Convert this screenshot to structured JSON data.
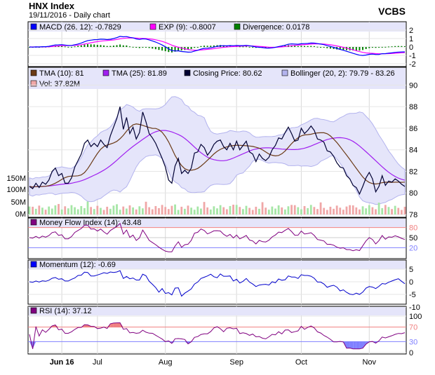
{
  "header": {
    "title": "HNX Index",
    "subtitle": "19/11/2016 - Daily chart",
    "brand": "VCBS"
  },
  "x_axis": {
    "labels": [
      {
        "label": "Jun 16",
        "index": 10,
        "bold": true
      },
      {
        "label": "Jul",
        "index": 21
      },
      {
        "label": "Aug",
        "index": 42
      },
      {
        "label": "Sep",
        "index": 64
      },
      {
        "label": "Oct",
        "index": 84
      },
      {
        "label": "Nov",
        "index": 105
      }
    ]
  },
  "colors": {
    "accent_bg": "#e5e5fa",
    "macd": "#0000ff",
    "signal": "#ff00ff",
    "divergence": "#008000",
    "tma10": "#6b3a16",
    "tma25": "#a020f0",
    "close": "#000033",
    "bollinger": "#b3b3ee",
    "vol_up": "#a6e6a6",
    "vol_down": "#f0a7a7",
    "mfi": "#800080",
    "momentum": "#0000cc",
    "rsi": "#800080",
    "overbought": "#f08080",
    "oversold": "#8080ff"
  },
  "panels": {
    "macd": {
      "legend": [
        {
          "text": "MACD (26, 12): -0.7829",
          "color": "#0000ff"
        },
        {
          "text": "EXP (9): -0.8007",
          "color": "#ff00ff"
        },
        {
          "text": "Divergence: 0.0178",
          "color": "#008000"
        }
      ],
      "ticks": [
        "2",
        "1",
        "0",
        "-1",
        "-2"
      ]
    },
    "price": {
      "legend": [
        {
          "text": "TMA (10): 81",
          "color": "#6b3a16"
        },
        {
          "text": "TMA (25): 81.89",
          "color": "#a020f0"
        },
        {
          "text": "Closing Price: 80.62",
          "color": "#000033"
        },
        {
          "text": "Bollinger (20, 2): 79.79 - 83.26",
          "color": "#b3b3ee"
        }
      ],
      "legend2": {
        "text": "Vol: 37.82M",
        "color": "#f0a7a7"
      },
      "ticks": [
        "90",
        "88",
        "86",
        "84",
        "82",
        "80",
        "78"
      ],
      "vol_ticks": [
        "150M",
        "100M",
        "50M",
        "0M"
      ]
    },
    "mfi": {
      "legend": {
        "text": "Money Flow Index (14): 43.48",
        "color": "#800080"
      },
      "ticks": [
        "80",
        "50",
        "20"
      ]
    },
    "momentum": {
      "legend": {
        "text": "Momentum (12): -0.69",
        "color": "#0000ff"
      },
      "ticks": [
        "5",
        "0",
        "-5",
        "-10"
      ]
    },
    "rsi": {
      "legend": {
        "text": "RSI (14): 37.12",
        "color": "#800080"
      },
      "ticks": [
        "100",
        "70",
        "30",
        "0"
      ]
    }
  },
  "chart_data": {
    "type": "line",
    "title": "HNX Index",
    "x_unit": "trading day index (0 = mid-May 2016, 116 = 18/11/2016)",
    "price": {
      "ylim": [
        78,
        91
      ],
      "close": [
        80.6,
        80.4,
        80.9,
        80.5,
        81.0,
        80.8,
        81.2,
        82.0,
        82.3,
        81.6,
        81.8,
        80.9,
        80.9,
        81.4,
        82.4,
        83.0,
        83.6,
        84.6,
        84.9,
        84.3,
        84.6,
        84.3,
        84.9,
        84.5,
        84.2,
        85.3,
        86.1,
        86.9,
        88.0,
        85.9,
        87.0,
        85.5,
        86.1,
        85.0,
        85.6,
        87.5,
        86.6,
        85.5,
        85.1,
        84.6,
        83.9,
        83.2,
        82.4,
        81.2,
        80.9,
        82.5,
        83.2,
        81.8,
        82.1,
        81.8,
        82.3,
        83.7,
        83.8,
        84.5,
        84.2,
        83.5,
        83.9,
        84.5,
        84.8,
        84.9,
        84.3,
        84.0,
        84.6,
        84.0,
        84.8,
        84.0,
        84.4,
        84.8,
        83.8,
        83.6,
        82.9,
        83.6,
        83.2,
        83.0,
        83.3,
        84.0,
        84.4,
        85.1,
        85.0,
        85.6,
        86.1,
        85.5,
        84.8,
        84.9,
        86.0,
        85.5,
        85.8,
        86.2,
        85.8,
        85.0,
        84.9,
        84.7,
        83.9,
        83.8,
        83.4,
        82.8,
        82.4,
        82.3,
        81.6,
        81.3,
        80.7,
        80.5,
        79.9,
        80.6,
        81.4,
        81.9,
        81.3,
        80.1,
        80.6,
        81.6,
        80.7,
        81.1,
        81.0,
        81.3,
        81.1,
        80.8,
        80.6
      ],
      "tma10_last": 81,
      "tma25_last": 81.89,
      "bollinger_last": [
        79.79,
        83.26
      ]
    },
    "volume": {
      "ylim": [
        0,
        160000000
      ],
      "last": 37820000
    },
    "macd": {
      "ylim": [
        -2,
        2
      ],
      "last": -0.7829,
      "signal_last": -0.8007,
      "divergence_last": 0.0178
    },
    "mfi": {
      "ylim": [
        0,
        100
      ],
      "last": 43.48,
      "levels": [
        80,
        50,
        20
      ]
    },
    "momentum": {
      "ylim": [
        -10,
        5
      ],
      "period": 12,
      "last": -0.69
    },
    "rsi": {
      "ylim": [
        0,
        100
      ],
      "period": 14,
      "last": 37.12,
      "levels": [
        70,
        30
      ]
    },
    "grid": true,
    "legend_position": "top-left"
  }
}
